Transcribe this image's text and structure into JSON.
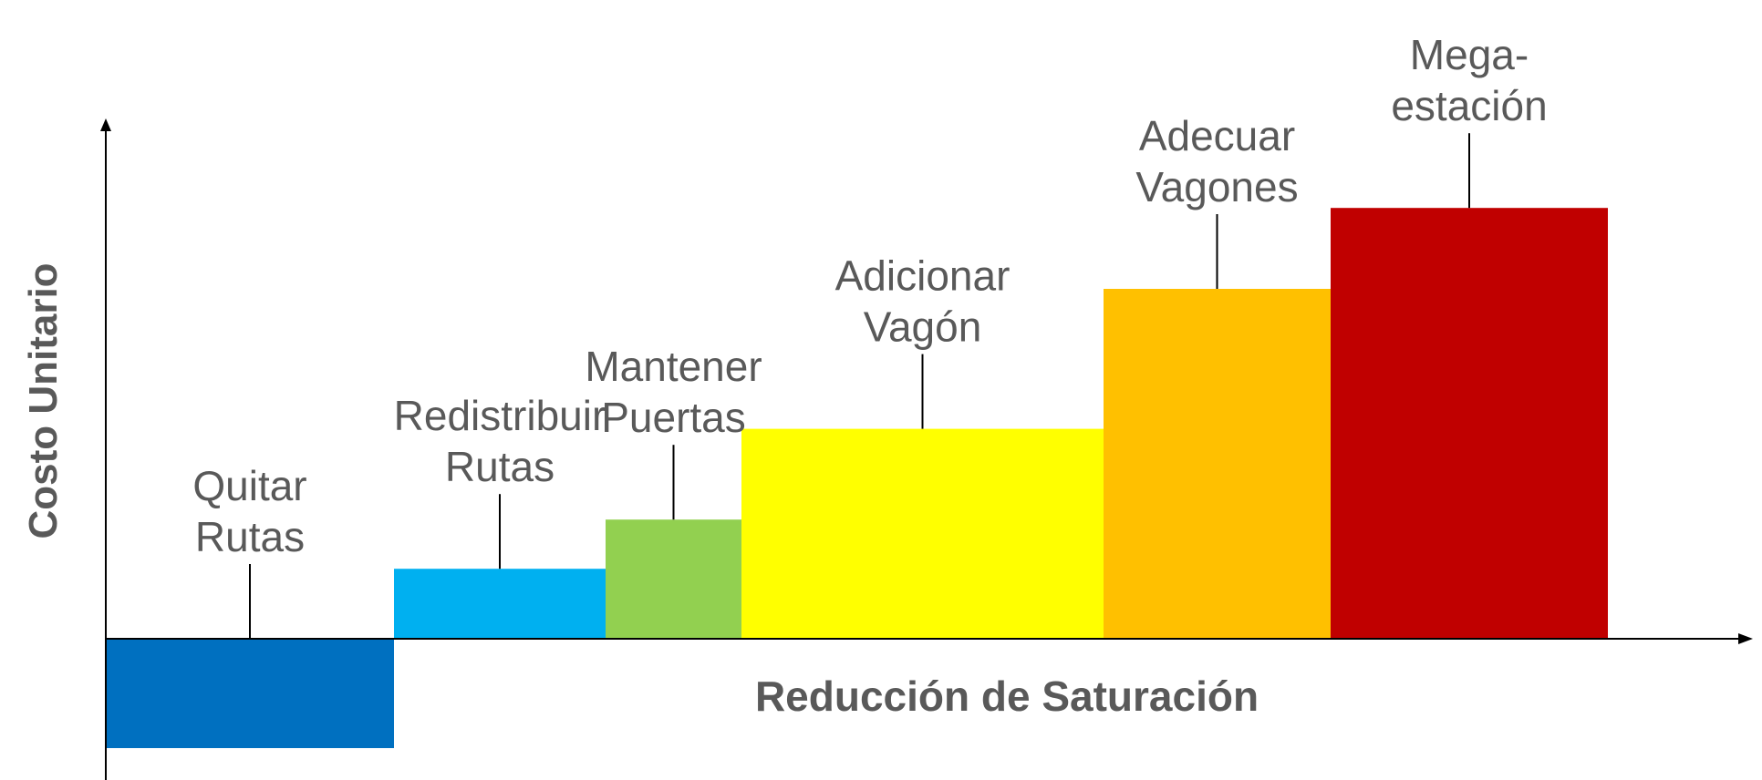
{
  "chart_data": {
    "type": "bar",
    "variant": "marginal-cost-curve",
    "xlabel": "Reducción de Saturación",
    "ylabel": "Costo Unitario",
    "ylim": [
      -100,
      400
    ],
    "grid": false,
    "legend": "none",
    "bars": [
      {
        "label": [
          "Quitar",
          "Rutas"
        ],
        "width": 316,
        "value": -100,
        "color": "#0070C0"
      },
      {
        "label": [
          "Redistribuir",
          "Rutas"
        ],
        "width": 232,
        "value": 64,
        "color": "#00B0F0"
      },
      {
        "label": [
          "Mantener",
          "Puertas"
        ],
        "width": 149,
        "value": 109,
        "color": "#92D050"
      },
      {
        "label": [
          "Adicionar",
          "Vagón"
        ],
        "width": 397,
        "value": 192,
        "color": "#FFFF00"
      },
      {
        "label": [
          "Adecuar",
          "Vagones"
        ],
        "width": 249,
        "value": 320,
        "color": "#FFC000"
      },
      {
        "label": [
          "Mega-",
          "estación"
        ],
        "width": 304,
        "value": 394,
        "color": "#C00000"
      }
    ]
  }
}
